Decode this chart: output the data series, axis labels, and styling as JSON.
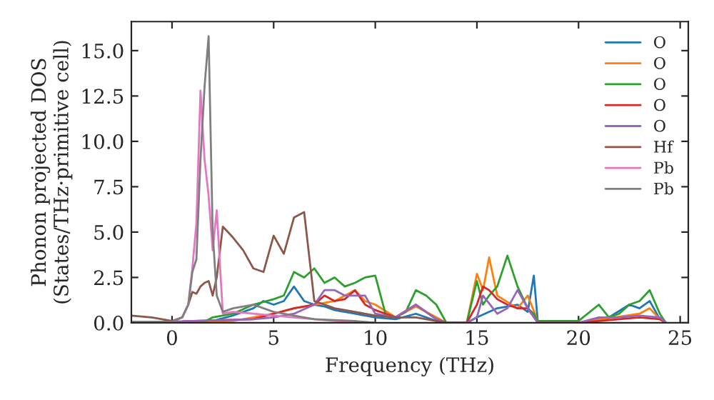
{
  "chart_data": {
    "type": "line",
    "xlabel": "Frequency (THz)",
    "ylabel": "Phonon projected DOS\n(States/THz·primitive cell)",
    "xlim": [
      -2,
      25.4
    ],
    "ylim": [
      0,
      16.6
    ],
    "xticks": [
      0,
      5,
      10,
      15,
      20,
      25
    ],
    "yticks": [
      {
        "value": 0,
        "label": "0.0"
      },
      {
        "value": 2.5,
        "label": "2.5"
      },
      {
        "value": 5,
        "label": "5.0"
      },
      {
        "value": 7.5,
        "label": "7.5"
      },
      {
        "value": 10,
        "label": "10.0"
      },
      {
        "value": 12.5,
        "label": "12.5"
      },
      {
        "value": 15,
        "label": "15.0"
      }
    ],
    "grid": false,
    "legend": "top right",
    "line_style": "solid",
    "marker": "none",
    "series": [
      {
        "name": "O",
        "color": "#1f77b4",
        "x": [
          -2,
          2,
          3,
          4,
          4.5,
          5,
          5.5,
          6,
          6.5,
          7,
          7.5,
          8,
          9,
          10,
          11,
          12,
          13,
          13.5,
          14.5,
          15,
          16,
          17,
          17.5,
          17.8,
          18,
          20,
          21.5,
          22.5,
          23,
          23.5,
          24,
          24.3
        ],
        "values": [
          0,
          0.1,
          0.4,
          0.8,
          1.2,
          1.0,
          1.2,
          2.0,
          1.2,
          1.0,
          0.9,
          0.7,
          0.5,
          0.3,
          0.2,
          0.5,
          0.1,
          0,
          0,
          0.3,
          0.8,
          1.0,
          0.6,
          2.6,
          0,
          0,
          0.3,
          1.0,
          0.8,
          1.2,
          0.2,
          0
        ]
      },
      {
        "name": "O",
        "color": "#ff7f0e",
        "x": [
          -2,
          3,
          4,
          5,
          6,
          7,
          8,
          9,
          9.5,
          10,
          11,
          12,
          13,
          13.5,
          14.5,
          15,
          15.3,
          15.6,
          16,
          17,
          17.5,
          18,
          20,
          23,
          23.5,
          24,
          24.3
        ],
        "values": [
          0,
          0.1,
          0.3,
          0.5,
          0.8,
          1.0,
          1.2,
          1.8,
          1.2,
          1.0,
          0.3,
          0.9,
          0.3,
          0,
          0,
          2.7,
          1.8,
          3.6,
          1.5,
          0.8,
          1.5,
          0.1,
          0,
          0.5,
          0.8,
          0.2,
          0
        ]
      },
      {
        "name": "O",
        "color": "#2ca02c",
        "x": [
          -2,
          1.5,
          2,
          3,
          4,
          5,
          5.5,
          6,
          6.5,
          7,
          7.5,
          8,
          8.5,
          9,
          9.5,
          10,
          10.5,
          11,
          11.5,
          12,
          12.5,
          13,
          13.5,
          14.5,
          15,
          15.3,
          15.6,
          16,
          16.5,
          17,
          17.5,
          17.8,
          18,
          20,
          21,
          21.5,
          22,
          22.5,
          23,
          23.5,
          24,
          24.3
        ],
        "values": [
          0,
          0,
          0.3,
          0.5,
          1.0,
          1.3,
          1.5,
          2.8,
          2.5,
          3.0,
          2.2,
          2.5,
          2.0,
          2.2,
          2.5,
          2.6,
          0.5,
          0.3,
          0.6,
          1.8,
          1.5,
          1.0,
          0,
          0,
          2.3,
          1.0,
          1.5,
          2.0,
          3.7,
          2.0,
          0.8,
          0.5,
          0.1,
          0.1,
          1.0,
          0.3,
          0.5,
          1.0,
          1.2,
          1.8,
          0.5,
          0
        ]
      },
      {
        "name": "O",
        "color": "#d62728",
        "x": [
          -2,
          4,
          5,
          6,
          7,
          7.5,
          8,
          8.5,
          9,
          9.5,
          10,
          11,
          12,
          13,
          13.5,
          14.5,
          15,
          15.3,
          15.6,
          16,
          16.5,
          17,
          17.5,
          18,
          20,
          23,
          24,
          24.3
        ],
        "values": [
          0,
          0.2,
          0.5,
          0.8,
          1.0,
          1.5,
          1.2,
          1.3,
          1.8,
          1.0,
          0.7,
          0.3,
          1.0,
          0.2,
          0,
          0,
          1.0,
          2.0,
          1.8,
          1.3,
          1.0,
          0.8,
          0.8,
          0,
          0,
          0.3,
          0.2,
          0
        ]
      },
      {
        "name": "O",
        "color": "#9467bd",
        "x": [
          -2,
          4,
          5,
          6,
          7,
          7.5,
          8,
          8.5,
          9,
          9.5,
          10,
          11,
          12,
          13,
          13.5,
          14.5,
          15,
          15.3,
          16,
          16.5,
          17,
          17.5,
          18,
          20,
          21,
          22,
          23,
          24,
          24.3
        ],
        "values": [
          0,
          0.2,
          0.3,
          0.5,
          1.0,
          1.8,
          1.8,
          1.5,
          1.5,
          1.5,
          0.5,
          0.3,
          1.0,
          0.2,
          0,
          0,
          0.3,
          1.5,
          0.5,
          0.8,
          1.8,
          0.8,
          0,
          0,
          0.3,
          0.3,
          0.4,
          0.3,
          0
        ]
      },
      {
        "name": "Hf",
        "color": "#8c564b",
        "x": [
          -2,
          -1.5,
          -1,
          -0.5,
          0,
          0.5,
          0.8,
          1,
          1.2,
          1.4,
          1.6,
          1.8,
          2,
          2.2,
          2.5,
          3,
          3.5,
          4,
          4.5,
          5,
          5.5,
          6,
          6.5,
          7,
          7.5,
          8,
          9,
          10,
          11,
          12,
          13,
          13.5
        ],
        "values": [
          0.4,
          0.35,
          0.3,
          0.2,
          0.1,
          0.3,
          1.0,
          1.7,
          1.6,
          2.0,
          2.2,
          2.3,
          1.5,
          2.5,
          5.3,
          4.7,
          4.0,
          3.0,
          2.8,
          4.8,
          3.8,
          5.8,
          6.1,
          1.2,
          1.0,
          0.8,
          0.6,
          0.4,
          0.3,
          0.3,
          0.1,
          0
        ]
      },
      {
        "name": "Pb",
        "color": "#e377c2",
        "x": [
          -2,
          0,
          0.5,
          0.8,
          1,
          1.2,
          1.4,
          1.6,
          1.8,
          2,
          2.2,
          2.5,
          3,
          4,
          5,
          6,
          7,
          8,
          10
        ],
        "values": [
          0.05,
          0.05,
          0.3,
          1.0,
          3.0,
          5.5,
          12.8,
          9.0,
          7.0,
          4.0,
          6.2,
          0.5,
          0.6,
          0.5,
          0.4,
          0.3,
          0.2,
          0.1,
          0
        ]
      },
      {
        "name": "Pb",
        "color": "#7f7f7f",
        "x": [
          -2,
          0,
          0.5,
          0.8,
          1,
          1.2,
          1.4,
          1.6,
          1.8,
          2,
          2.2,
          2.5,
          3,
          3.5,
          4,
          5,
          6,
          7,
          9,
          10
        ],
        "values": [
          0.05,
          0.05,
          0.3,
          1.0,
          2.8,
          3.5,
          9.0,
          13.0,
          15.8,
          5.0,
          1.5,
          0.6,
          0.8,
          0.9,
          1.0,
          0.6,
          0.4,
          0.2,
          0.1,
          0
        ]
      }
    ]
  }
}
